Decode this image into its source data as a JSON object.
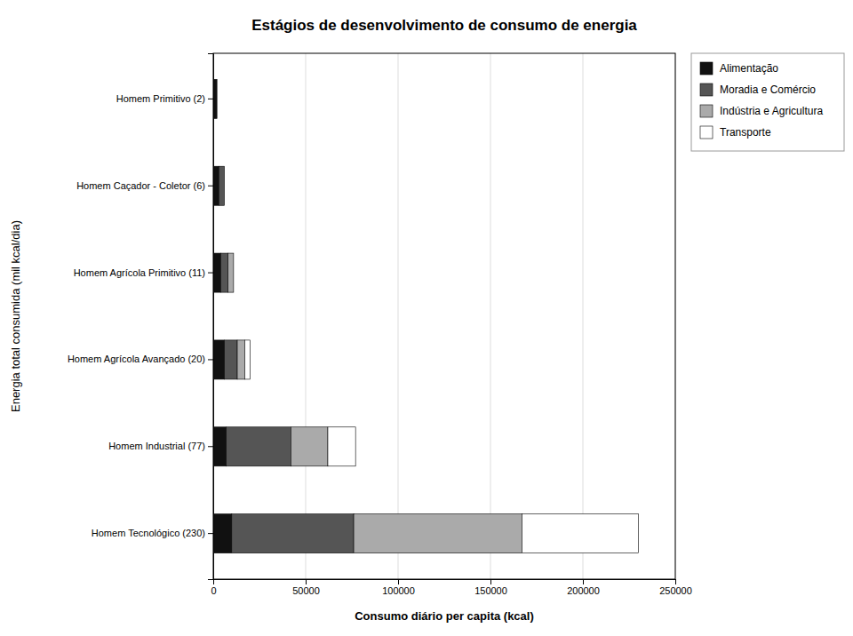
{
  "chart_data": {
    "type": "bar",
    "orientation": "horizontal",
    "stacked": true,
    "title": "Estágios de desenvolvimento de consumo de energia",
    "xlabel": "Consumo diário per capita (kcal)",
    "ylabel": "Energia total consumida (mil kcal/dia)",
    "categories": [
      "Homem Primitivo (2)",
      "Homem Caçador - Coletor (6)",
      "Homem Agrícola Primitivo (11)",
      "Homem Agrícola Avançado (20)",
      "Homem Industrial (77)",
      "Homem Tecnológico (230)"
    ],
    "series": [
      {
        "name": "Alimentação",
        "color": "#111111",
        "values": [
          2000,
          3000,
          4000,
          6000,
          7000,
          10000
        ]
      },
      {
        "name": "Moradia e Comércio",
        "color": "#555555",
        "values": [
          0,
          3000,
          4000,
          7000,
          35000,
          66000
        ]
      },
      {
        "name": "Indústria e Agricultura",
        "color": "#aaaaaa",
        "values": [
          0,
          0,
          3000,
          4000,
          20000,
          91000
        ]
      },
      {
        "name": "Transporte",
        "color": "#ffffff",
        "values": [
          0,
          0,
          0,
          3000,
          15000,
          63000
        ]
      }
    ],
    "xlim": [
      0,
      250000
    ],
    "xticks": [
      0,
      50000,
      100000,
      150000,
      200000,
      250000
    ],
    "grid": true,
    "legend": "right"
  }
}
